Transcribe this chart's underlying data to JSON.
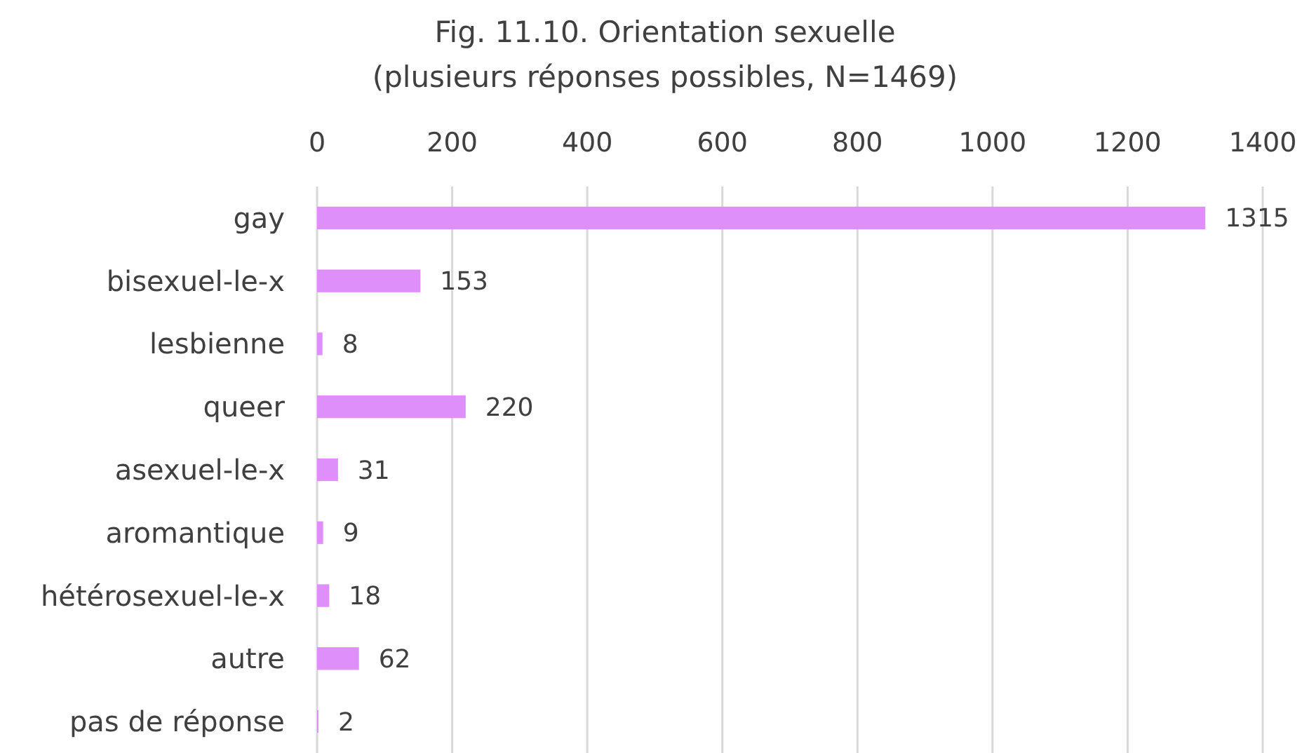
{
  "chart_data": {
    "type": "bar",
    "orientation": "horizontal",
    "title": "Fig. 11.10. Orientation sexuelle\n(plusieurs réponses possibles, N=1469)",
    "categories": [
      "gay",
      "bisexuel-le-x",
      "lesbienne",
      "queer",
      "asexuel-le-x",
      "aromantique",
      "hétérosexuel-le-x",
      "autre",
      "pas de réponse"
    ],
    "values": [
      1315,
      153,
      8,
      220,
      31,
      9,
      18,
      62,
      2
    ],
    "color": "#df8ff9",
    "xlim": [
      0,
      1400
    ],
    "xticks": [
      0,
      200,
      400,
      600,
      800,
      1000,
      1200,
      1400
    ],
    "grid": "x",
    "data_labels": true
  }
}
